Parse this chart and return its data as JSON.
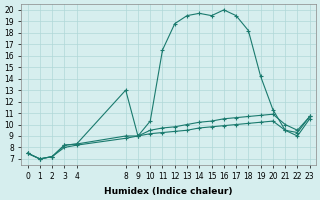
{
  "xlabel": "Humidex (Indice chaleur)",
  "ylabel": "",
  "bg_color": "#d6eeee",
  "line_color": "#1a7a6e",
  "grid_color": "#b0d8d8",
  "line1_x": [
    0,
    1,
    2,
    3,
    4,
    8,
    9,
    10,
    11,
    12,
    13,
    14,
    15,
    16,
    17,
    18,
    19,
    20,
    21,
    22,
    23
  ],
  "line1_y": [
    7.5,
    7.0,
    7.2,
    8.2,
    8.3,
    13.0,
    9.0,
    10.3,
    16.5,
    18.8,
    19.5,
    19.7,
    19.5,
    20.0,
    19.5,
    18.2,
    14.2,
    11.3,
    9.5,
    9.3,
    10.7
  ],
  "line2_x": [
    0,
    1,
    2,
    3,
    4,
    8,
    9,
    10,
    11,
    12,
    13,
    14,
    15,
    16,
    17,
    18,
    19,
    20,
    21,
    22,
    23
  ],
  "line2_y": [
    7.5,
    7.0,
    7.2,
    8.2,
    8.3,
    9.0,
    9.0,
    9.5,
    9.7,
    9.8,
    10.0,
    10.2,
    10.3,
    10.5,
    10.6,
    10.7,
    10.8,
    10.9,
    10.0,
    9.5,
    10.7
  ],
  "line3_x": [
    0,
    1,
    2,
    3,
    4,
    8,
    9,
    10,
    11,
    12,
    13,
    14,
    15,
    16,
    17,
    18,
    19,
    20,
    21,
    22,
    23
  ],
  "line3_y": [
    7.5,
    7.0,
    7.2,
    8.0,
    8.2,
    8.8,
    9.0,
    9.2,
    9.3,
    9.4,
    9.5,
    9.7,
    9.8,
    9.9,
    10.0,
    10.1,
    10.2,
    10.3,
    9.5,
    9.0,
    10.5
  ],
  "xticks": [
    0,
    1,
    2,
    3,
    4,
    8,
    9,
    10,
    11,
    12,
    13,
    14,
    15,
    16,
    17,
    18,
    19,
    20,
    21,
    22,
    23
  ],
  "yticks": [
    7,
    8,
    9,
    10,
    11,
    12,
    13,
    14,
    15,
    16,
    17,
    18,
    19,
    20
  ],
  "xlim": [
    -0.5,
    23.5
  ],
  "ylim": [
    6.5,
    20.5
  ]
}
